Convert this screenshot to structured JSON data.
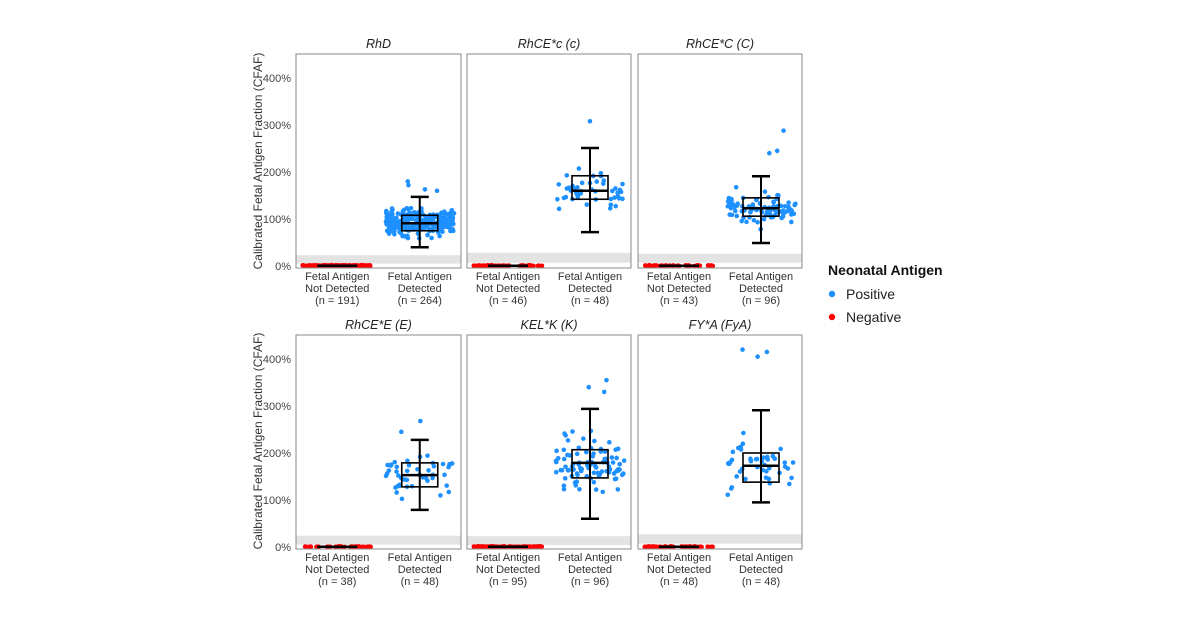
{
  "chart_data": {
    "type": "box-jitter",
    "ylabel": "Calibrated Fetal Antigen Fraction (CFAF)",
    "ylim": [
      0,
      450
    ],
    "yticks": [
      "0%",
      "100%",
      "200%",
      "300%",
      "400%"
    ],
    "ytick_values": [
      0,
      100,
      200,
      300,
      400
    ],
    "categories": [
      [
        "Fetal Antigen",
        "Not Detected"
      ],
      [
        "Fetal Antigen",
        "Detected"
      ]
    ],
    "legend": {
      "title": "Neonatal Antigen",
      "placement": "right",
      "entries": [
        {
          "label": "Positive",
          "color": "#1E90FF"
        },
        {
          "label": "Negative",
          "color": "#FF0000"
        }
      ]
    },
    "band_color": "#E3E3E3",
    "panels": [
      {
        "title": "RhD",
        "n_labels": [
          "(n = 191)",
          "(n = 264)"
        ],
        "n": [
          191,
          264
        ],
        "reference_band": [
          5,
          23
        ],
        "detected_box": {
          "whisker_low": 40,
          "q1": 75,
          "median": 91,
          "q3": 108,
          "whisker_high": 147
        },
        "detected_outliers": [
          180,
          172,
          163,
          160
        ]
      },
      {
        "title": "RhCE*c (c)",
        "n_labels": [
          "(n = 46)",
          "(n = 48)"
        ],
        "n": [
          46,
          48
        ],
        "reference_band": [
          7,
          28
        ],
        "detected_box": {
          "whisker_low": 72,
          "q1": 142,
          "median": 160,
          "q3": 192,
          "whisker_high": 251
        },
        "detected_outliers": [
          308
        ]
      },
      {
        "title": "RhCE*C (C)",
        "n_labels": [
          "(n = 43)",
          "(n = 96)"
        ],
        "n": [
          43,
          96
        ],
        "reference_band": [
          7,
          26
        ],
        "detected_box": {
          "whisker_low": 49,
          "q1": 106,
          "median": 123,
          "q3": 145,
          "whisker_high": 191
        },
        "detected_outliers": [
          288,
          245,
          240
        ]
      },
      {
        "title": "RhCE*E (E)",
        "n_labels": [
          "(n = 38)",
          "(n = 48)"
        ],
        "n": [
          38,
          48
        ],
        "reference_band": [
          5,
          24
        ],
        "detected_box": {
          "whisker_low": 79,
          "q1": 128,
          "median": 153,
          "q3": 179,
          "whisker_high": 228
        },
        "detected_outliers": [
          268,
          245
        ]
      },
      {
        "title": "KEL*K (K)",
        "n_labels": [
          "(n = 95)",
          "(n = 96)"
        ],
        "n": [
          95,
          96
        ],
        "reference_band": [
          4,
          23
        ],
        "detected_box": {
          "whisker_low": 60,
          "q1": 147,
          "median": 179,
          "q3": 207,
          "whisker_high": 294
        },
        "detected_outliers": [
          355,
          340,
          330
        ]
      },
      {
        "title": "FY*A (FyA)",
        "n_labels": [
          "(n = 48)",
          "(n = 48)"
        ],
        "n": [
          48,
          48
        ],
        "reference_band": [
          7,
          27
        ],
        "detected_box": {
          "whisker_low": 95,
          "q1": 138,
          "median": 173,
          "q3": 200,
          "whisker_high": 291
        },
        "detected_outliers": [
          420,
          415,
          405
        ]
      }
    ]
  }
}
